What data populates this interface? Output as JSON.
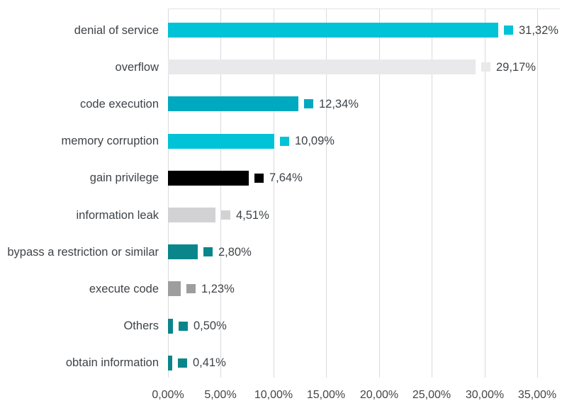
{
  "chart_data": {
    "type": "bar",
    "orientation": "horizontal",
    "title": "",
    "xlabel": "",
    "ylabel": "",
    "xlim": [
      0,
      35
    ],
    "grid": true,
    "legend": "none",
    "decimal_separator": ",",
    "bars": [
      {
        "label": "denial of service",
        "value": 31.32,
        "display": "31,32%",
        "color": "#00c3d8"
      },
      {
        "label": "overflow",
        "value": 29.17,
        "display": "29,17%",
        "color": "#e9e9eb"
      },
      {
        "label": "code execution",
        "value": 12.34,
        "display": "12,34%",
        "color": "#00a9c0"
      },
      {
        "label": "memory corruption",
        "value": 10.09,
        "display": "10,09%",
        "color": "#00c3d8"
      },
      {
        "label": "gain privilege",
        "value": 7.64,
        "display": "7,64%",
        "color": "#000000"
      },
      {
        "label": "information leak",
        "value": 4.51,
        "display": "4,51%",
        "color": "#d2d2d4"
      },
      {
        "label": "bypass a restriction or similar",
        "value": 2.8,
        "display": "2,80%",
        "color": "#0a868b"
      },
      {
        "label": "execute code",
        "value": 1.23,
        "display": "1,23%",
        "color": "#9e9ea0"
      },
      {
        "label": "Others",
        "value": 0.5,
        "display": "0,50%",
        "color": "#0a868b"
      },
      {
        "label": "obtain information",
        "value": 0.41,
        "display": "0,41%",
        "color": "#0a868b"
      }
    ],
    "x_tick_values": [
      0,
      5,
      10,
      15,
      20,
      25,
      30,
      35
    ],
    "x_tick_labels": [
      "0,00%",
      "5,00%",
      "10,00%",
      "15,00%",
      "20,00%",
      "25,00%",
      "30,00%",
      "35,00%"
    ],
    "colors": {
      "cyan_bright": "#00c3d8",
      "cyan_dark": "#00a9c0",
      "teal_dark": "#0a868b",
      "gray_medium": "#9e9ea0",
      "gray_light": "#d2d2d4",
      "gray_lighter": "#e9e9eb",
      "black": "#000000",
      "gridline": "#dadadd",
      "text": "#3f4347"
    }
  }
}
